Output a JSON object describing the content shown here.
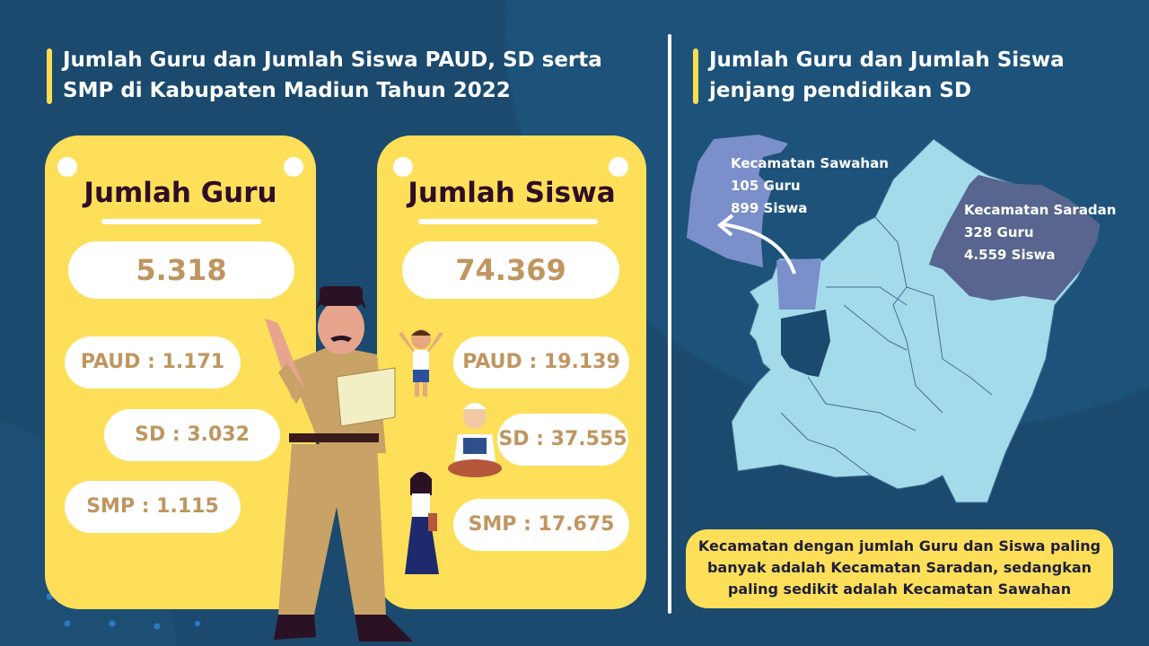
{
  "left_section": {
    "title_line1": "Jumlah Guru dan Jumlah Siswa PAUD, SD serta",
    "title_line2": "SMP di Kabupaten Madiun Tahun 2022"
  },
  "guru_card": {
    "title": "Jumlah Guru",
    "total": "5.318",
    "paud": "PAUD : 1.171",
    "sd": "SD : 3.032",
    "smp": "SMP : 1.115"
  },
  "siswa_card": {
    "title": "Jumlah Siswa",
    "total": "74.369",
    "paud": "PAUD : 19.139",
    "sd": "SD : 37.555",
    "smp": "SMP : 17.675"
  },
  "right_section": {
    "title_line1": "Jumlah Guru dan Jumlah Siswa",
    "title_line2": "jenjang pendidikan SD"
  },
  "map": {
    "sawahan": {
      "name": "Kecamatan Sawahan",
      "guru": "105 Guru",
      "siswa": "899 Siswa",
      "color": "#7b8fca"
    },
    "saradan": {
      "name": "Kecamatan Saradan",
      "guru": "328 Guru",
      "siswa": "4.559 Siswa",
      "color": "#57658f"
    },
    "region_color": "#a4dbeb"
  },
  "conclusion": {
    "line1": "Kecamatan dengan jumlah Guru dan Siswa paling",
    "line2": "banyak adalah Kecamatan Saradan, sedangkan",
    "line3": "paling sedikit adalah Kecamatan Sawahan"
  },
  "colors": {
    "background": "#1b4a6e",
    "card": "#fddf59",
    "value_text": "#bf9660",
    "title_text": "#2e0e26"
  }
}
